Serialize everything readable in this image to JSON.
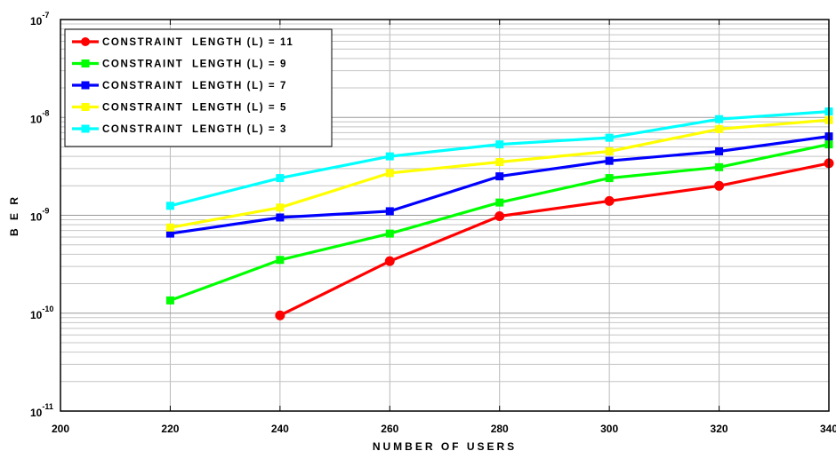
{
  "chart_data": {
    "type": "line",
    "xlabel": "NUMBER  OF  USERS",
    "ylabel": "B E R",
    "xlim": [
      200,
      340
    ],
    "ylim": [
      1e-11,
      1e-07
    ],
    "yscale": "log",
    "grid": true,
    "legend_position": "top-left",
    "x_ticks": [
      "200",
      "220",
      "240",
      "260",
      "280",
      "300",
      "320",
      "340"
    ],
    "y_ticks": [
      {
        "base": "10",
        "exp": "-7",
        "value": 1e-07
      },
      {
        "base": "10",
        "exp": "-8",
        "value": 1e-08
      },
      {
        "base": "10",
        "exp": "-9",
        "value": 1e-09
      },
      {
        "base": "10",
        "exp": "-10",
        "value": 1e-10
      },
      {
        "base": "10",
        "exp": "-11",
        "value": 1e-11
      }
    ],
    "series": [
      {
        "name": "CONSTRAINT  LENGTH (L) = 11",
        "color": "#ff0000",
        "marker": "circle",
        "x": [
          240,
          260,
          280,
          300,
          320,
          340
        ],
        "values": [
          9.5e-11,
          3.4e-10,
          9.8e-10,
          1.4e-09,
          2e-09,
          3.4e-09
        ]
      },
      {
        "name": "CONSTRAINT  LENGTH (L) = 9",
        "color": "#00ff00",
        "marker": "square",
        "x": [
          220,
          240,
          260,
          280,
          300,
          320,
          340
        ],
        "values": [
          1.35e-10,
          3.5e-10,
          6.5e-10,
          1.35e-09,
          2.4e-09,
          3.1e-09,
          5.3e-09
        ]
      },
      {
        "name": "CONSTRAINT  LENGTH (L) = 7",
        "color": "#0000ff",
        "marker": "square",
        "x": [
          220,
          240,
          260,
          280,
          300,
          320,
          340
        ],
        "values": [
          6.5e-10,
          9.5e-10,
          1.1e-09,
          2.5e-09,
          3.6e-09,
          4.5e-09,
          6.4e-09
        ]
      },
      {
        "name": "CONSTRAINT  LENGTH (L) = 5",
        "color": "#ffff00",
        "marker": "square",
        "x": [
          220,
          240,
          260,
          280,
          300,
          320,
          340
        ],
        "values": [
          7.5e-10,
          1.2e-09,
          2.7e-09,
          3.5e-09,
          4.5e-09,
          7.6e-09,
          9.4e-09
        ]
      },
      {
        "name": "CONSTRAINT  LENGTH (L) = 3",
        "color": "#00ffff",
        "marker": "square",
        "x": [
          220,
          240,
          260,
          280,
          300,
          320,
          340
        ],
        "values": [
          1.25e-09,
          2.4e-09,
          4e-09,
          5.3e-09,
          6.2e-09,
          9.6e-09,
          1.15e-08
        ]
      }
    ]
  }
}
